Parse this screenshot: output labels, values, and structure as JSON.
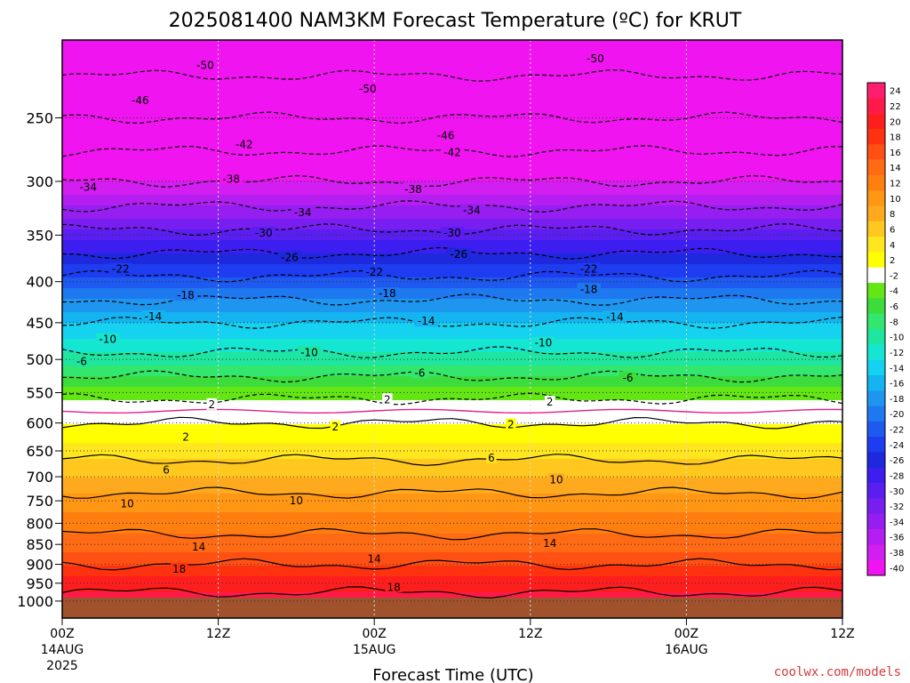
{
  "chart_data": {
    "type": "heatmap",
    "title": "2025081400 NAM3KM Forecast Temperature (ºC) for KRUT",
    "xlabel": "Forecast Time (UTC)",
    "ylabel": "",
    "credit": "coolwx.com/models",
    "y_scale": "log",
    "y_reversed": true,
    "ylim": [
      1050,
      200
    ],
    "y_ticks": [
      250,
      300,
      350,
      400,
      450,
      500,
      550,
      600,
      650,
      700,
      750,
      800,
      850,
      900,
      950,
      1000
    ],
    "x_hours": [
      0,
      48
    ],
    "x_ticks": [
      {
        "hour": 0,
        "label": "00Z",
        "date": "14AUG",
        "year": "2025"
      },
      {
        "hour": 12,
        "label": "12Z",
        "date": "",
        "year": ""
      },
      {
        "hour": 24,
        "label": "00Z",
        "date": "15AUG",
        "year": ""
      },
      {
        "hour": 36,
        "label": "12Z",
        "date": "",
        "year": ""
      },
      {
        "hour": 48,
        "label": "00Z",
        "date": "16AUG",
        "year": ""
      },
      {
        "hour": 60,
        "label": "12Z",
        "date": "",
        "year": ""
      }
    ],
    "grid": true,
    "colorbar": {
      "placement": "right",
      "levels": [
        24,
        22,
        20,
        18,
        16,
        14,
        12,
        10,
        8,
        6,
        4,
        2,
        -2,
        -4,
        -6,
        -8,
        -10,
        -12,
        -14,
        -16,
        -18,
        -20,
        -22,
        -24,
        -26,
        -28,
        -30,
        -32,
        -34,
        -36,
        -38,
        -40
      ],
      "colors": [
        "#ff1e6e",
        "#ff1a4a",
        "#ff1e1e",
        "#ff3210",
        "#ff5014",
        "#ff6a14",
        "#ff7e10",
        "#ff9614",
        "#ffaa1e",
        "#ffc81e",
        "#ffe61e",
        "#ffff00",
        "#ffffff",
        "#64e614",
        "#3cdc3c",
        "#32e66e",
        "#1ee6a0",
        "#14e6d2",
        "#14d2f0",
        "#14b4f0",
        "#1e96f0",
        "#1e78f0",
        "#1e5af0",
        "#1e3cf0",
        "#1e28dc",
        "#3c1ef0",
        "#5a1ef0",
        "#781ef0",
        "#961ef0",
        "#b41ef0",
        "#d21ef0",
        "#f014f0"
      ],
      "ground_color": "#a0522d"
    },
    "profile": {
      "pressure_hpa": [
        200,
        250,
        300,
        350,
        400,
        450,
        500,
        550,
        600,
        650,
        700,
        750,
        800,
        850,
        900,
        950,
        1000
      ],
      "temperature_c": [
        -53,
        -46,
        -38,
        -29,
        -21,
        -14,
        -9,
        -3,
        2,
        5,
        8,
        11,
        13,
        15,
        18,
        21,
        23
      ]
    },
    "contour_labels": [
      {
        "value": "-50",
        "hour": 11,
        "p": 215
      },
      {
        "value": "-50",
        "hour": 23.5,
        "p": 230
      },
      {
        "value": "-50",
        "hour": 41,
        "p": 211
      },
      {
        "value": "-46",
        "hour": 6,
        "p": 238
      },
      {
        "value": "-46",
        "hour": 29.5,
        "p": 263
      },
      {
        "value": "-42",
        "hour": 14,
        "p": 270
      },
      {
        "value": "-42",
        "hour": 30,
        "p": 276
      },
      {
        "value": "-38",
        "hour": 13,
        "p": 298
      },
      {
        "value": "-38",
        "hour": 27,
        "p": 307
      },
      {
        "value": "-34",
        "hour": 2,
        "p": 305
      },
      {
        "value": "-34",
        "hour": 18.5,
        "p": 328
      },
      {
        "value": "-34",
        "hour": 31.5,
        "p": 326
      },
      {
        "value": "-30",
        "hour": 15.5,
        "p": 348
      },
      {
        "value": "-30",
        "hour": 30,
        "p": 348
      },
      {
        "value": "-26",
        "hour": 17.5,
        "p": 373
      },
      {
        "value": "-26",
        "hour": 30.5,
        "p": 370
      },
      {
        "value": "-22",
        "hour": 4.5,
        "p": 386
      },
      {
        "value": "-22",
        "hour": 24,
        "p": 389
      },
      {
        "value": "-22",
        "hour": 40.5,
        "p": 386
      },
      {
        "value": "-18",
        "hour": 9.5,
        "p": 416
      },
      {
        "value": "-18",
        "hour": 25,
        "p": 414
      },
      {
        "value": "-18",
        "hour": 40.5,
        "p": 409
      },
      {
        "value": "-14",
        "hour": 7,
        "p": 442
      },
      {
        "value": "-14",
        "hour": 28,
        "p": 448
      },
      {
        "value": "-14",
        "hour": 42.5,
        "p": 443
      },
      {
        "value": "-10",
        "hour": 3.5,
        "p": 472
      },
      {
        "value": "-10",
        "hour": 19,
        "p": 490
      },
      {
        "value": "-10",
        "hour": 37,
        "p": 477
      },
      {
        "value": "-6",
        "hour": 1.5,
        "p": 503
      },
      {
        "value": "-6",
        "hour": 27.5,
        "p": 520
      },
      {
        "value": "-6",
        "hour": 43.5,
        "p": 527
      },
      {
        "value": "2",
        "hour": 11.5,
        "p": 569
      },
      {
        "value": "2",
        "hour": 25,
        "p": 561
      },
      {
        "value": "2",
        "hour": 37.5,
        "p": 565
      },
      {
        "value": "2",
        "hour": 9.5,
        "p": 625
      },
      {
        "value": "2",
        "hour": 21,
        "p": 607
      },
      {
        "value": "2",
        "hour": 34.5,
        "p": 603
      },
      {
        "value": "6",
        "hour": 8,
        "p": 687
      },
      {
        "value": "6",
        "hour": 33,
        "p": 663
      },
      {
        "value": "10",
        "hour": 5,
        "p": 757
      },
      {
        "value": "10",
        "hour": 18,
        "p": 750
      },
      {
        "value": "10",
        "hour": 38,
        "p": 706
      },
      {
        "value": "14",
        "hour": 10.5,
        "p": 856
      },
      {
        "value": "14",
        "hour": 24,
        "p": 886
      },
      {
        "value": "14",
        "hour": 37.5,
        "p": 847
      },
      {
        "value": "18",
        "hour": 9,
        "p": 912
      },
      {
        "value": "18",
        "hour": 25.5,
        "p": 961
      }
    ]
  }
}
